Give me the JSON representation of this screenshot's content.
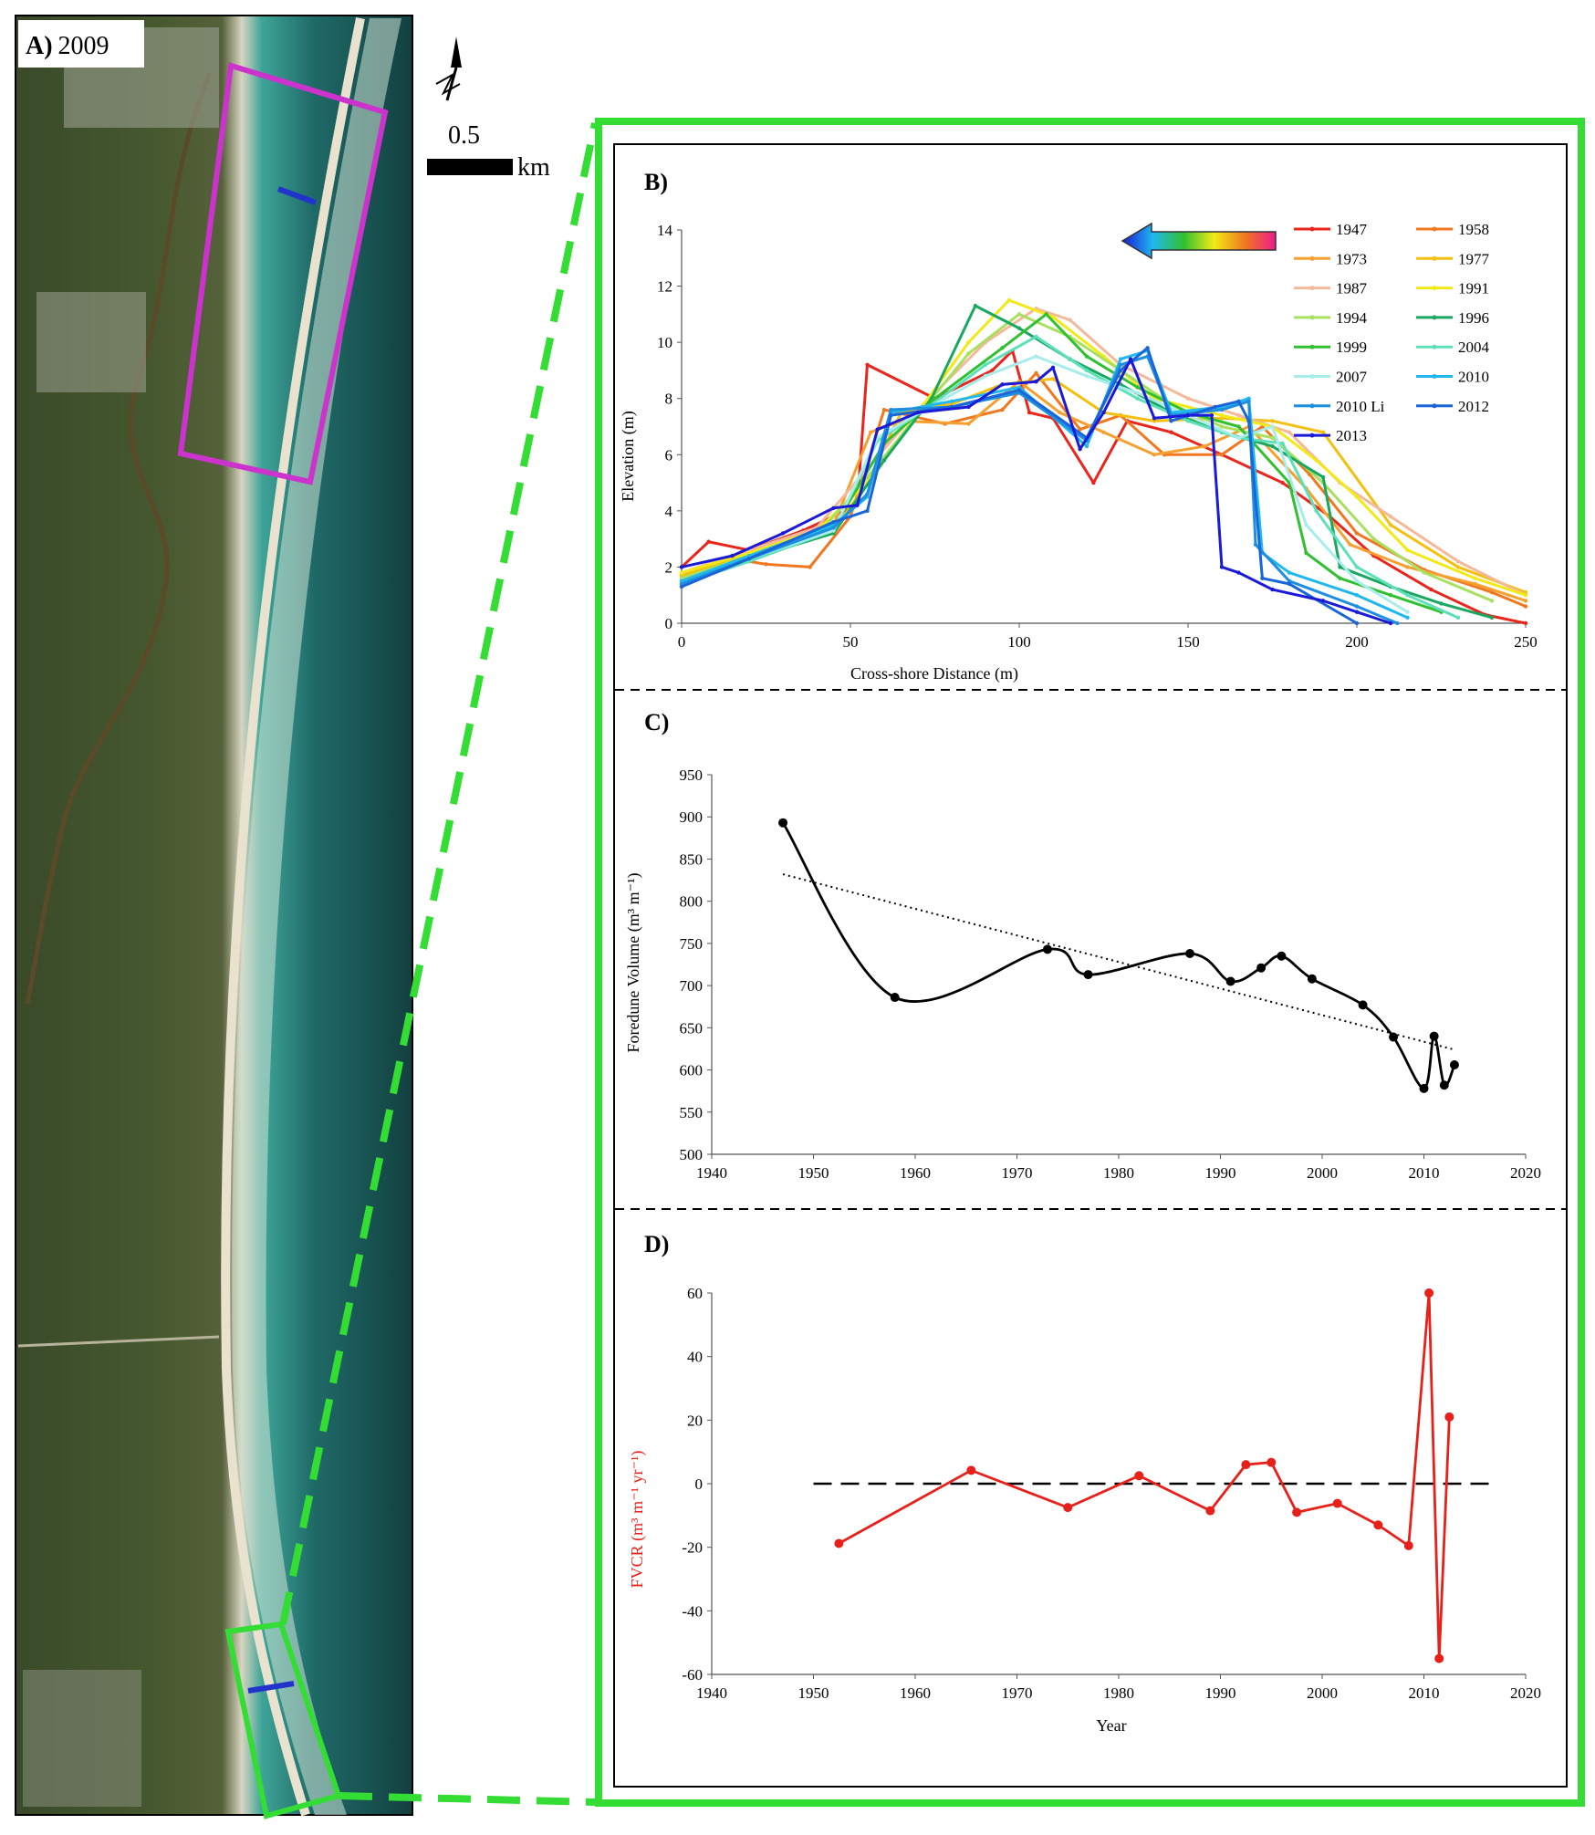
{
  "panel_a": {
    "label": "A)",
    "year": "2009",
    "scale_value": "0.5",
    "scale_unit": "km",
    "north_icon": "north-arrow-icon",
    "colors": {
      "study_box": "#cc33cc",
      "zoom_box": "#33dd33",
      "transect": "#2233cc"
    }
  },
  "chart_data": [
    {
      "id": "B",
      "label": "B)",
      "type": "line",
      "title": "",
      "xlabel": "Cross-shore Distance  (m)",
      "ylabel": "Elevation  (m)",
      "xlim": [
        0,
        250
      ],
      "ylim": [
        0,
        14
      ],
      "xticks": [
        0,
        50,
        100,
        150,
        200,
        250
      ],
      "yticks": [
        0,
        2,
        4,
        6,
        8,
        10,
        12,
        14
      ],
      "legend_position": "top-right",
      "legend_arrow_icon": "gradient-arrow-icon",
      "series": [
        {
          "name": "1947",
          "color": "#e8261c",
          "x": [
            0,
            8,
            20,
            36,
            52,
            55,
            75,
            92,
            98,
            103,
            110,
            122,
            132,
            145,
            160,
            178,
            192,
            205,
            222,
            238,
            250
          ],
          "y": [
            2.0,
            2.9,
            2.6,
            3.3,
            4.2,
            9.2,
            8.0,
            9.0,
            9.7,
            7.5,
            7.3,
            5.0,
            7.2,
            6.8,
            6.0,
            5.0,
            3.8,
            2.4,
            1.2,
            0.3,
            0
          ]
        },
        {
          "name": "1958",
          "color": "#f07820",
          "x": [
            0,
            15,
            25,
            38,
            50,
            60,
            78,
            95,
            105,
            118,
            130,
            143,
            160,
            172,
            186,
            200,
            220,
            240,
            250
          ],
          "y": [
            1.8,
            2.3,
            2.1,
            2.0,
            3.8,
            7.6,
            7.1,
            7.6,
            8.9,
            6.9,
            7.4,
            6.0,
            6.0,
            7.0,
            5.3,
            3.2,
            1.9,
            1.1,
            0.6
          ]
        },
        {
          "name": "1973",
          "color": "#f5a030",
          "x": [
            0,
            20,
            45,
            56,
            65,
            85,
            100,
            112,
            125,
            140,
            155,
            168,
            185,
            198,
            215,
            235,
            250
          ],
          "y": [
            1.7,
            2.5,
            3.5,
            6.8,
            7.2,
            7.1,
            8.6,
            7.5,
            6.8,
            6.0,
            6.3,
            7.0,
            4.8,
            2.8,
            2.0,
            1.4,
            0.8
          ]
        },
        {
          "name": "1977",
          "color": "#f3c010",
          "x": [
            0,
            20,
            45,
            55,
            65,
            80,
            95,
            110,
            125,
            140,
            160,
            175,
            190,
            210,
            230,
            250
          ],
          "y": [
            1.7,
            2.4,
            3.3,
            5.0,
            7.5,
            7.8,
            8.5,
            8.7,
            7.5,
            7.2,
            7.3,
            7.2,
            6.8,
            3.5,
            2.0,
            1.1
          ]
        },
        {
          "name": "1987",
          "color": "#f4b89a",
          "x": [
            0,
            20,
            40,
            55,
            70,
            90,
            105,
            115,
            130,
            150,
            165,
            180,
            195,
            210,
            230,
            250
          ],
          "y": [
            1.8,
            2.6,
            3.4,
            5.5,
            7.6,
            10.0,
            11.2,
            10.8,
            9.2,
            8.0,
            7.4,
            6.8,
            5.0,
            3.8,
            2.2,
            1.0
          ]
        },
        {
          "name": "1991",
          "color": "#f2ea18",
          "x": [
            0,
            20,
            40,
            55,
            70,
            85,
            97,
            110,
            125,
            140,
            160,
            175,
            188,
            200,
            215,
            235,
            250
          ],
          "y": [
            1.8,
            2.5,
            3.3,
            5.0,
            7.5,
            10.0,
            11.5,
            10.9,
            9.5,
            8.0,
            7.4,
            7.0,
            5.8,
            4.5,
            2.6,
            1.6,
            1.0
          ]
        },
        {
          "name": "1994",
          "color": "#a8e060",
          "x": [
            0,
            20,
            40,
            55,
            70,
            85,
            100,
            115,
            130,
            145,
            160,
            175,
            190,
            205,
            220,
            240
          ],
          "y": [
            1.6,
            2.4,
            3.1,
            5.2,
            7.4,
            9.6,
            11.0,
            10.2,
            9.0,
            7.8,
            7.0,
            6.6,
            5.0,
            3.0,
            1.8,
            0.8
          ]
        },
        {
          "name": "1996",
          "color": "#1aa860",
          "x": [
            0,
            20,
            45,
            60,
            74,
            87,
            100,
            115,
            130,
            145,
            160,
            175,
            190,
            195,
            210,
            225,
            240
          ],
          "y": [
            1.5,
            2.3,
            3.2,
            5.8,
            8.0,
            11.3,
            10.5,
            9.4,
            8.5,
            7.5,
            6.8,
            6.3,
            5.2,
            2.0,
            1.3,
            0.7,
            0.2
          ]
        },
        {
          "name": "1999",
          "color": "#30c030",
          "x": [
            0,
            20,
            45,
            60,
            75,
            95,
            108,
            120,
            135,
            150,
            165,
            180,
            185,
            195,
            210,
            225
          ],
          "y": [
            1.5,
            2.2,
            3.4,
            6.4,
            8.0,
            9.8,
            11.0,
            9.5,
            8.4,
            7.5,
            7.0,
            5.0,
            2.5,
            1.6,
            1.0,
            0.4
          ]
        },
        {
          "name": "2004",
          "color": "#5de0b8",
          "x": [
            0,
            20,
            45,
            58,
            72,
            90,
            105,
            120,
            135,
            150,
            165,
            178,
            188,
            200,
            215,
            230
          ],
          "y": [
            1.4,
            2.2,
            3.3,
            6.5,
            7.6,
            9.2,
            10.2,
            9.0,
            8.0,
            7.2,
            6.6,
            6.4,
            4.0,
            2.0,
            1.0,
            0.2
          ]
        },
        {
          "name": "2007",
          "color": "#a8ecec",
          "x": [
            0,
            20,
            45,
            58,
            72,
            90,
            105,
            120,
            135,
            150,
            165,
            175,
            185,
            200,
            215
          ],
          "y": [
            1.5,
            2.3,
            3.3,
            6.6,
            7.6,
            8.8,
            9.5,
            8.8,
            8.2,
            7.4,
            6.6,
            7.0,
            3.5,
            1.5,
            0.4
          ]
        },
        {
          "name": "2010",
          "color": "#20b8ee",
          "x": [
            0,
            20,
            45,
            55,
            62,
            80,
            100,
            120,
            130,
            138,
            145,
            160,
            168,
            172,
            180,
            200,
            215
          ],
          "y": [
            1.5,
            2.4,
            3.5,
            4.5,
            7.5,
            7.9,
            8.4,
            6.3,
            9.4,
            9.7,
            7.5,
            7.7,
            8.0,
            2.5,
            1.8,
            1.0,
            0.2
          ]
        },
        {
          "name": "2010 Li",
          "color": "#1e8ee0",
          "x": [
            0,
            20,
            45,
            55,
            62,
            80,
            100,
            120,
            130,
            138,
            145,
            160,
            168,
            170,
            180,
            200,
            212
          ],
          "y": [
            1.4,
            2.3,
            3.4,
            4.6,
            7.6,
            7.7,
            8.2,
            6.5,
            9.2,
            9.5,
            7.4,
            7.6,
            7.9,
            2.8,
            1.5,
            0.6,
            0
          ]
        },
        {
          "name": "2012",
          "color": "#1a66d8",
          "x": [
            0,
            20,
            45,
            55,
            62,
            80,
            100,
            120,
            130,
            138,
            145,
            158,
            165,
            168,
            172,
            180,
            200
          ],
          "y": [
            1.3,
            2.3,
            3.6,
            4.0,
            7.4,
            7.7,
            8.3,
            6.6,
            9.0,
            9.8,
            7.2,
            7.7,
            7.9,
            7.2,
            1.6,
            1.4,
            0
          ]
        },
        {
          "name": "2013",
          "color": "#1a1ad8",
          "x": [
            0,
            15,
            30,
            45,
            52,
            58,
            70,
            85,
            95,
            105,
            110,
            118,
            125,
            133,
            140,
            150,
            157,
            160,
            165,
            175,
            190,
            200,
            210
          ],
          "y": [
            2.0,
            2.4,
            3.2,
            4.1,
            4.2,
            6.9,
            7.5,
            7.7,
            8.5,
            8.6,
            9.1,
            6.2,
            7.5,
            9.4,
            7.3,
            7.4,
            7.4,
            2.0,
            1.8,
            1.2,
            0.8,
            0.4,
            0
          ]
        }
      ]
    },
    {
      "id": "C",
      "label": "C)",
      "type": "line",
      "title": "",
      "xlabel": "",
      "ylabel": "Foredune Volume  (m³ m⁻¹)",
      "xlim": [
        1940,
        2020
      ],
      "ylim": [
        500,
        950
      ],
      "xticks": [
        1940,
        1950,
        1960,
        1970,
        1980,
        1990,
        2000,
        2010,
        2020
      ],
      "yticks": [
        500,
        550,
        600,
        650,
        700,
        750,
        800,
        850,
        900,
        950
      ],
      "series": [
        {
          "name": "Foredune Volume",
          "color": "#000000",
          "x": [
            1947,
            1958,
            1973,
            1977,
            1987,
            1991,
            1994,
            1996,
            1999,
            2004,
            2007,
            2010,
            2011,
            2012,
            2013
          ],
          "y": [
            893,
            686,
            743,
            713,
            738,
            705,
            721,
            735,
            708,
            677,
            639,
            578,
            640,
            582,
            606
          ]
        }
      ],
      "trend": {
        "name": "Linear trend",
        "x": [
          1947,
          2013
        ],
        "y": [
          832,
          624
        ]
      }
    },
    {
      "id": "D",
      "label": "D)",
      "type": "line",
      "title": "",
      "xlabel": "Year",
      "ylabel": "FVCR (m³ m⁻¹ yr⁻¹)",
      "xlim": [
        1940,
        2020
      ],
      "ylim": [
        -60,
        60
      ],
      "xticks": [
        1940,
        1950,
        1960,
        1970,
        1980,
        1990,
        2000,
        2010,
        2020
      ],
      "yticks": [
        -60,
        -40,
        -20,
        0,
        20,
        40,
        60
      ],
      "series": [
        {
          "name": "FVCR",
          "color": "#e8201a",
          "x": [
            1952.5,
            1965.5,
            1975,
            1982,
            1989,
            1992.5,
            1995,
            1997.5,
            2001.5,
            2005.5,
            2008.5,
            2010.5,
            2011.5,
            2012.5
          ],
          "y": [
            -18.8,
            4.2,
            -7.5,
            2.5,
            -8.5,
            6.0,
            6.7,
            -9.0,
            -6.2,
            -13.0,
            -19.5,
            60,
            -55,
            21
          ]
        }
      ],
      "reference_line": {
        "y": 0,
        "x": [
          1950,
          2017
        ]
      }
    }
  ]
}
